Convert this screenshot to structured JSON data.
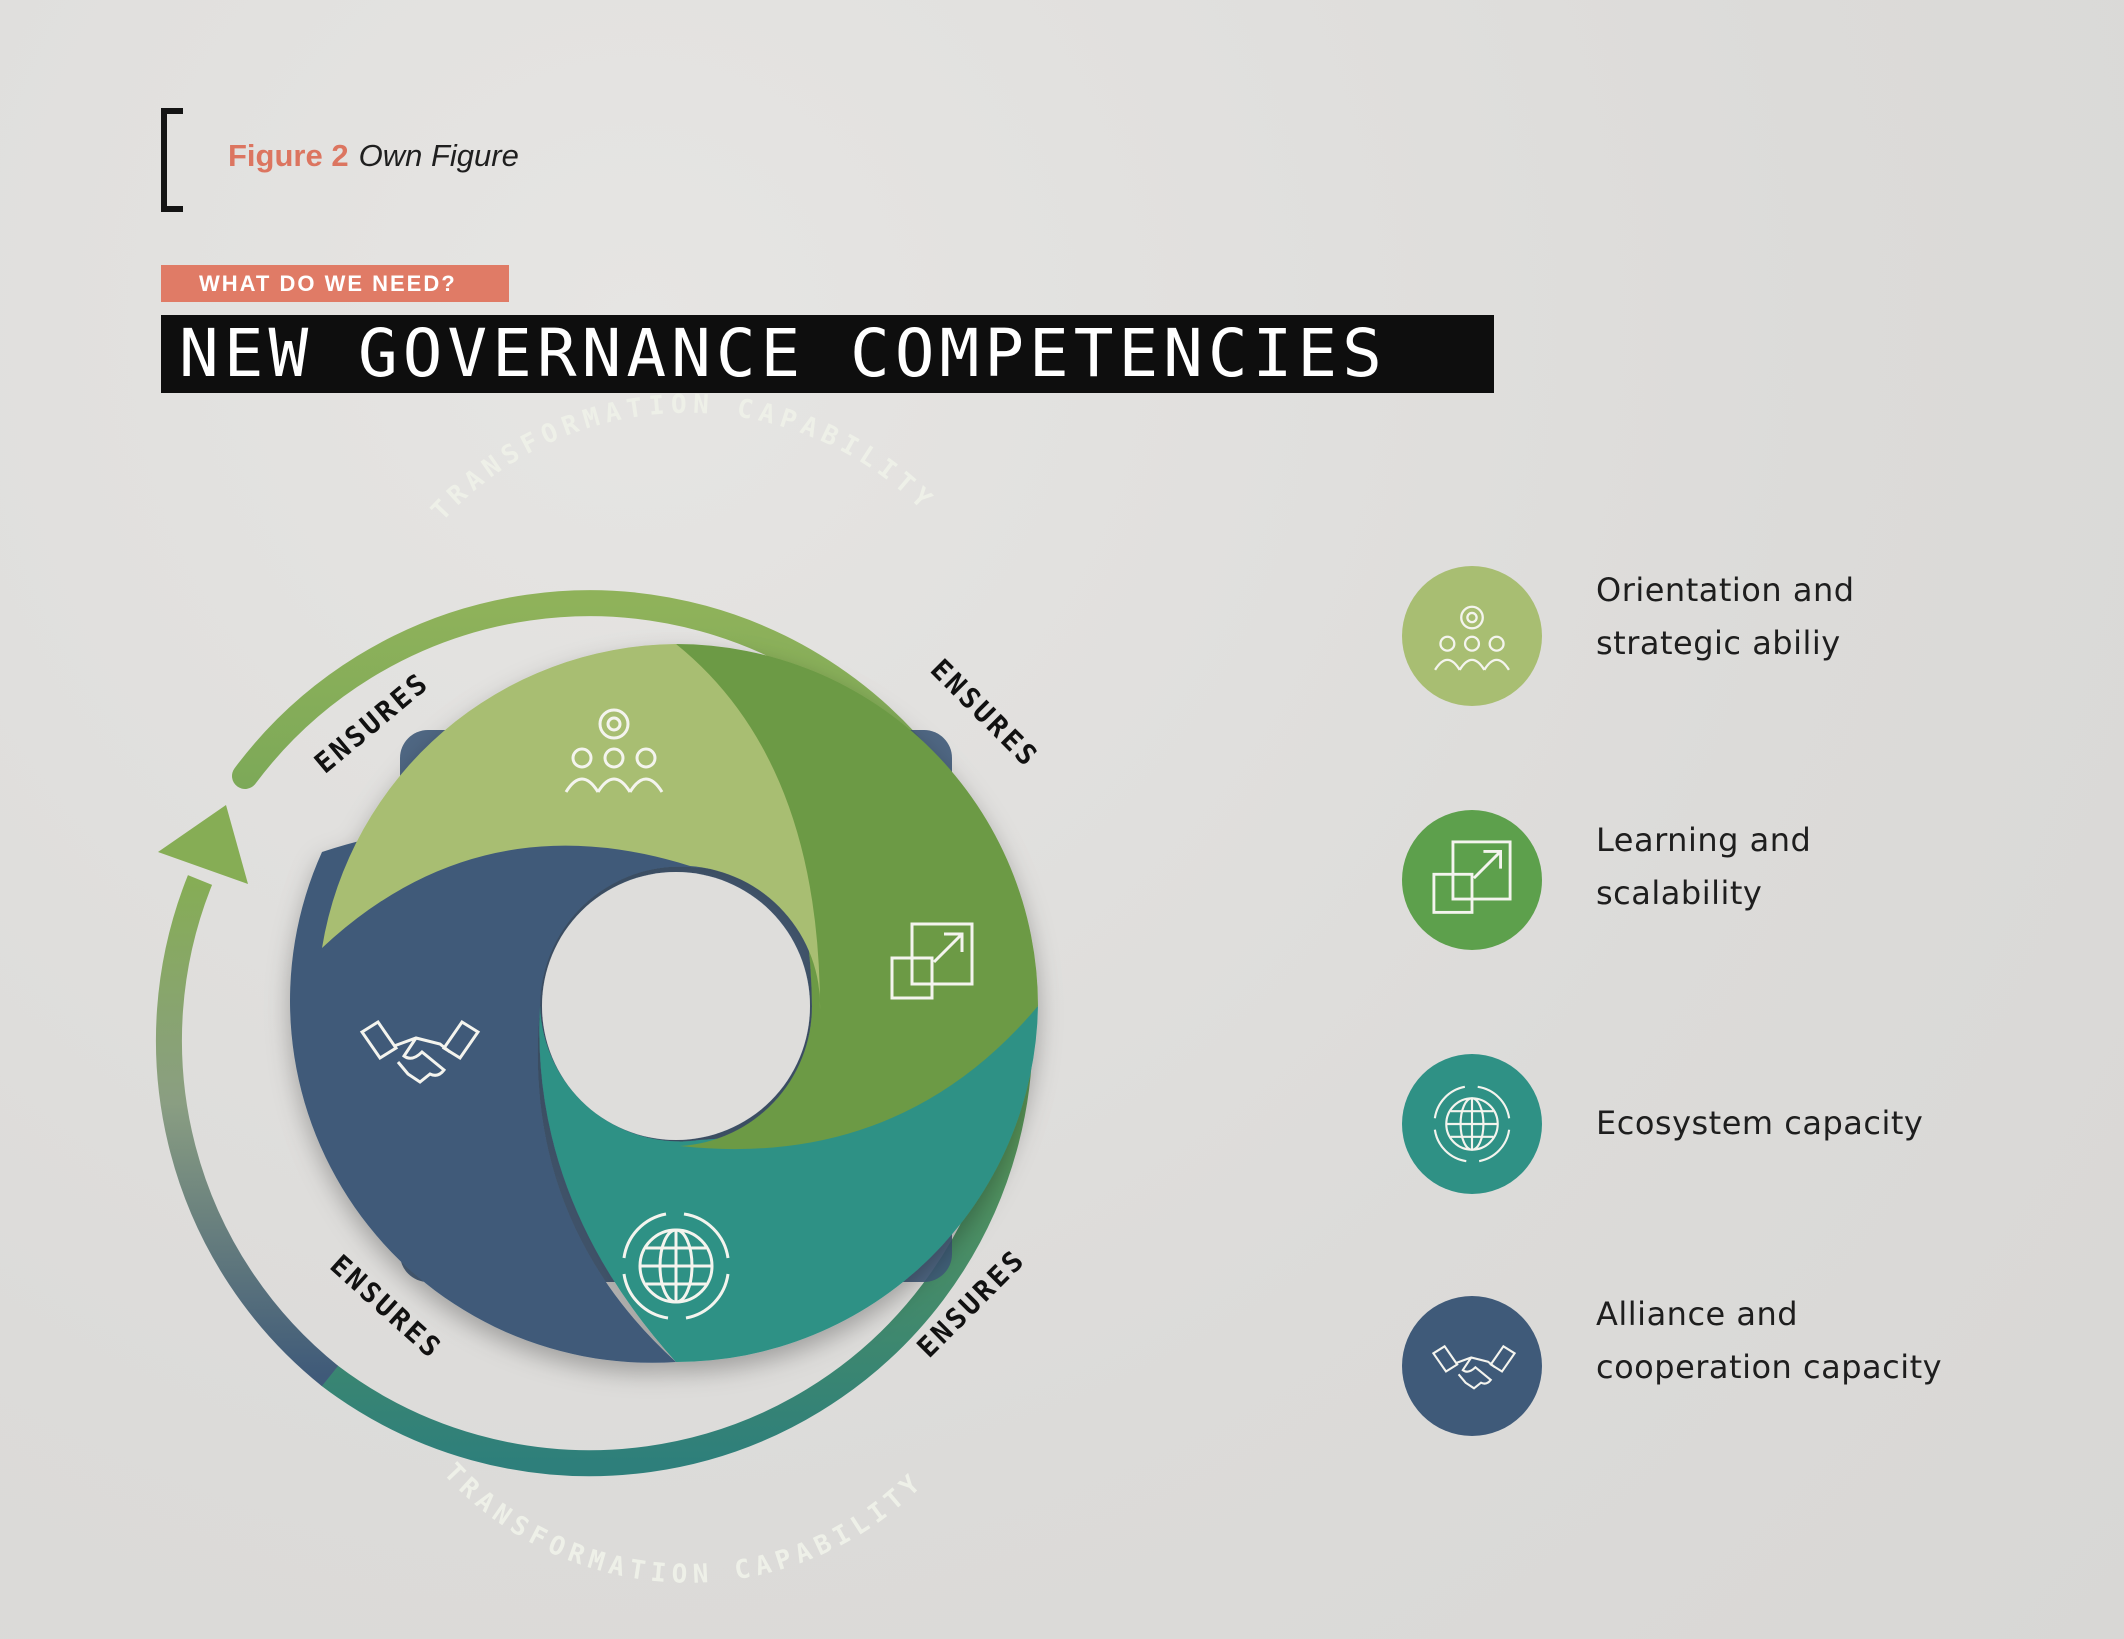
{
  "figure": {
    "number": "Figure 2",
    "caption": "Own Figure"
  },
  "kicker": "WHAT DO WE NEED?",
  "title": "NEW GOVERNANCE COMPETENCIES",
  "cycle": {
    "outer_label_top": "TRANSFORMATION CAPABILITY",
    "outer_label_bottom": "TRANSFORMATION CAPABILITY",
    "connector_label": "ENSURES"
  },
  "colors": {
    "orientation": "#a8be72",
    "learning": "#6c9a44",
    "ecosystem": "#2f9185",
    "alliance": "#3f5a79",
    "accent": "#e07b66"
  },
  "legend": [
    {
      "line1": "Orientation and",
      "line2": "strategic abiliy",
      "icon": "team-gear-icon"
    },
    {
      "line1": "Learning and",
      "line2": "scalability",
      "icon": "scale-up-icon"
    },
    {
      "line1": "Ecosystem capacity",
      "line2": "",
      "icon": "globe-cycle-icon"
    },
    {
      "line1": "Alliance and",
      "line2": "cooperation capacity",
      "icon": "handshake-icon"
    }
  ]
}
